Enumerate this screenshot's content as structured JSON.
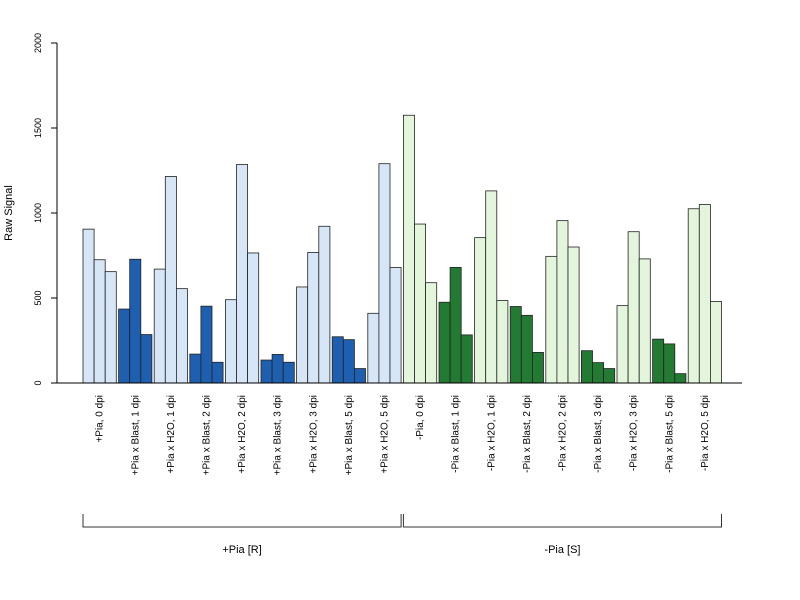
{
  "chart_data": {
    "type": "bar",
    "ylabel": "Raw Signal",
    "ylim": [
      0,
      2000
    ],
    "yticks": [
      0,
      500,
      1000,
      1500,
      2000
    ],
    "colors": {
      "light_blue": "#d6e6f7",
      "dark_blue": "#1f5fb0",
      "light_green": "#e3f6dc",
      "dark_green": "#237a33",
      "stroke": "#222222"
    },
    "categories": [
      {
        "label": "+Pia, 0 dpi",
        "tone": "light_blue",
        "values": [
          905,
          725,
          655
        ]
      },
      {
        "label": "+Pia x Blast, 1 dpi",
        "tone": "dark_blue",
        "values": [
          435,
          728,
          285
        ]
      },
      {
        "label": "+Pia x H2O, 1 dpi",
        "tone": "light_blue",
        "values": [
          670,
          1215,
          555
        ]
      },
      {
        "label": "+Pia x Blast, 2 dpi",
        "tone": "dark_blue",
        "values": [
          170,
          452,
          122
        ]
      },
      {
        "label": "+Pia x H2O, 2 dpi",
        "tone": "light_blue",
        "values": [
          490,
          1285,
          765
        ]
      },
      {
        "label": "+Pia x Blast, 3 dpi",
        "tone": "dark_blue",
        "values": [
          135,
          168,
          122
        ]
      },
      {
        "label": "+Pia x H2O, 3 dpi",
        "tone": "light_blue",
        "values": [
          565,
          768,
          922
        ]
      },
      {
        "label": "+Pia x Blast, 5 dpi",
        "tone": "dark_blue",
        "values": [
          272,
          255,
          85
        ]
      },
      {
        "label": "+Pia x H2O, 5 dpi",
        "tone": "light_blue",
        "values": [
          410,
          1290,
          680
        ]
      },
      {
        "label": "-Pia, 0 dpi",
        "tone": "light_green",
        "values": [
          1575,
          935,
          590
        ]
      },
      {
        "label": "-Pia x Blast, 1 dpi",
        "tone": "dark_green",
        "values": [
          475,
          680,
          283
        ]
      },
      {
        "label": "-Pia x H2O, 1 dpi",
        "tone": "light_green",
        "values": [
          855,
          1130,
          485
        ]
      },
      {
        "label": "-Pia x Blast, 2 dpi",
        "tone": "dark_green",
        "values": [
          450,
          398,
          180
        ]
      },
      {
        "label": "-Pia x H2O, 2 dpi",
        "tone": "light_green",
        "values": [
          745,
          955,
          800
        ]
      },
      {
        "label": "-Pia x Blast, 3 dpi",
        "tone": "dark_green",
        "values": [
          190,
          120,
          85
        ]
      },
      {
        "label": "-Pia x H2O, 3 dpi",
        "tone": "light_green",
        "values": [
          455,
          890,
          730
        ]
      },
      {
        "label": "-Pia x Blast, 5 dpi",
        "tone": "dark_green",
        "values": [
          258,
          230,
          55
        ]
      },
      {
        "label": "-Pia x H2O, 5 dpi",
        "tone": "light_green",
        "values": [
          1025,
          1050,
          480
        ]
      }
    ],
    "groups": [
      {
        "label": "+Pia [R]",
        "first": 0,
        "last": 8
      },
      {
        "label": "-Pia [S]",
        "first": 9,
        "last": 17
      }
    ]
  }
}
